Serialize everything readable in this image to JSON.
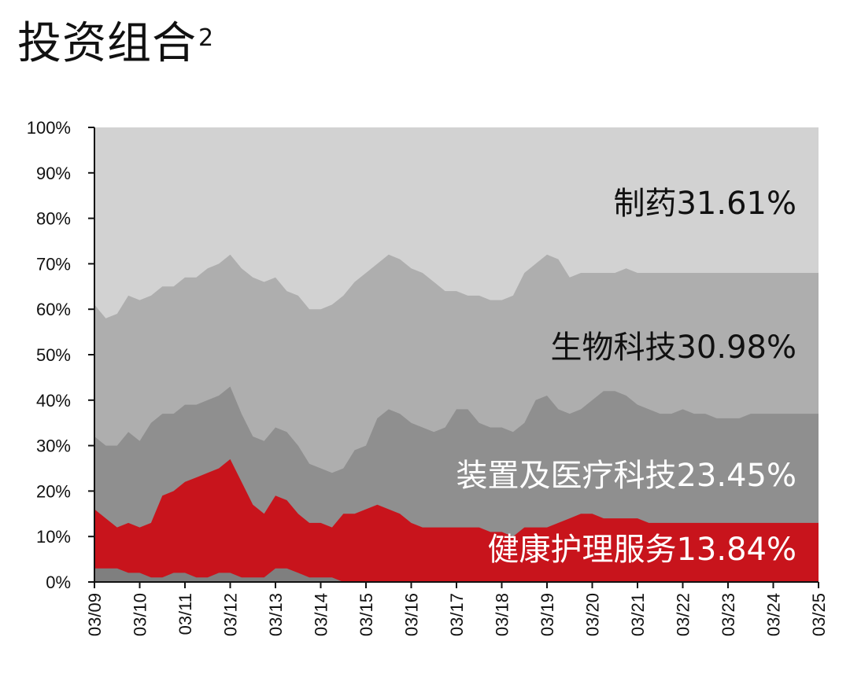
{
  "title": "投资组合",
  "title_sup": "2",
  "chart_data": {
    "type": "area",
    "stacked": true,
    "percent": true,
    "title": "投资组合",
    "ylim": [
      0,
      100
    ],
    "yticks": [
      "0%",
      "10%",
      "20%",
      "30%",
      "40%",
      "50%",
      "60%",
      "70%",
      "80%",
      "90%",
      "100%"
    ],
    "xticks": [
      "03/09",
      "03/10",
      "03/11",
      "03/12",
      "03/13",
      "03/14",
      "03/15",
      "03/16",
      "03/17",
      "03/18",
      "03/19",
      "03/20",
      "03/21",
      "03/22",
      "03/23",
      "03/24",
      "03/25"
    ],
    "x": [
      2009.0,
      2009.25,
      2009.5,
      2009.75,
      2010.0,
      2010.25,
      2010.5,
      2010.75,
      2011.0,
      2011.25,
      2011.5,
      2011.75,
      2012.0,
      2012.25,
      2012.5,
      2012.75,
      2013.0,
      2013.25,
      2013.5,
      2013.75,
      2014.0,
      2014.25,
      2014.5,
      2014.75,
      2015.0,
      2015.25,
      2015.5,
      2015.75,
      2016.0,
      2016.25,
      2016.5,
      2016.75,
      2017.0,
      2017.25,
      2017.5,
      2017.75,
      2018.0,
      2018.25,
      2018.5,
      2018.75,
      2019.0,
      2019.25,
      2019.5,
      2019.75,
      2020.0,
      2020.25,
      2020.5,
      2020.75,
      2021.0,
      2021.25,
      2021.5,
      2021.75,
      2022.0,
      2022.25,
      2022.5,
      2022.75,
      2023.0,
      2023.25,
      2023.5,
      2023.75,
      2024.0,
      2024.25,
      2024.5,
      2024.75,
      2025.0
    ],
    "series": [
      {
        "name": "健康护理服务13.84%",
        "color": "#c8141c",
        "label_color": "#ffffff",
        "cumulative": [
          16,
          14,
          12,
          13,
          12,
          13,
          19,
          20,
          22,
          23,
          24,
          25,
          27,
          22,
          17,
          15,
          19,
          18,
          15,
          13,
          13,
          12,
          15,
          15,
          16,
          17,
          16,
          15,
          13,
          12,
          12,
          12,
          12,
          12,
          12,
          11,
          11,
          10,
          12,
          12,
          12,
          13,
          14,
          15,
          15,
          14,
          14,
          14,
          14,
          13,
          13,
          13,
          13,
          13,
          13,
          13,
          13,
          13,
          13,
          13,
          13,
          13,
          13,
          13,
          13
        ]
      },
      {
        "name": "装置及医疗科技23.45%",
        "color": "#8f8f8f",
        "label_color": "#ffffff",
        "cumulative": [
          32,
          30,
          30,
          33,
          31,
          35,
          37,
          37,
          39,
          39,
          40,
          41,
          43,
          37,
          32,
          31,
          34,
          33,
          30,
          26,
          25,
          24,
          25,
          29,
          30,
          36,
          38,
          37,
          35,
          34,
          33,
          34,
          38,
          38,
          35,
          34,
          34,
          33,
          35,
          40,
          41,
          38,
          37,
          38,
          40,
          42,
          42,
          41,
          39,
          38,
          37,
          37,
          38,
          37,
          37,
          36,
          36,
          36,
          37,
          37,
          37,
          37,
          37,
          37,
          37
        ]
      },
      {
        "name": "生物科技30.98%",
        "color": "#aeaeae",
        "label_color": "#111111",
        "cumulative": [
          61,
          58,
          59,
          63,
          62,
          63,
          65,
          65,
          67,
          67,
          69,
          70,
          72,
          69,
          67,
          66,
          67,
          64,
          63,
          60,
          60,
          61,
          63,
          66,
          68,
          70,
          72,
          71,
          69,
          68,
          66,
          64,
          64,
          63,
          63,
          62,
          62,
          63,
          68,
          70,
          72,
          71,
          67,
          68,
          68,
          68,
          68,
          69,
          68,
          68,
          68,
          68,
          68,
          68,
          68,
          68,
          68,
          68,
          68,
          68,
          68,
          68,
          68,
          68,
          68
        ]
      },
      {
        "name": "制药31.61%",
        "color": "#d2d2d2",
        "label_color": "#111111",
        "cumulative": [
          100,
          100,
          100,
          100,
          100,
          100,
          100,
          100,
          100,
          100,
          100,
          100,
          100,
          100,
          100,
          100,
          100,
          100,
          100,
          100,
          100,
          100,
          100,
          100,
          100,
          100,
          100,
          100,
          100,
          100,
          100,
          100,
          100,
          100,
          100,
          100,
          100,
          100,
          100,
          100,
          100,
          100,
          100,
          100,
          100,
          100,
          100,
          100,
          100,
          100,
          100,
          100,
          100,
          100,
          100,
          100,
          100,
          100,
          100,
          100,
          100,
          100,
          100,
          100,
          100
        ]
      }
    ],
    "bottom_band": {
      "color": "#7f7f7f",
      "values": [
        3,
        3,
        3,
        2,
        2,
        1,
        1,
        2,
        2,
        1,
        1,
        2,
        2,
        1,
        1,
        1,
        3,
        3,
        2,
        1,
        1,
        1,
        0,
        0,
        0,
        0,
        0,
        0,
        0,
        0,
        0,
        0,
        0,
        0,
        0,
        0,
        0,
        0,
        0,
        0,
        0,
        0,
        0,
        0,
        0,
        0,
        0,
        0,
        0,
        0,
        0,
        0,
        0,
        0,
        0,
        0,
        0,
        0,
        0,
        0,
        0,
        0,
        0,
        0,
        0
      ]
    },
    "legend": "inline"
  }
}
